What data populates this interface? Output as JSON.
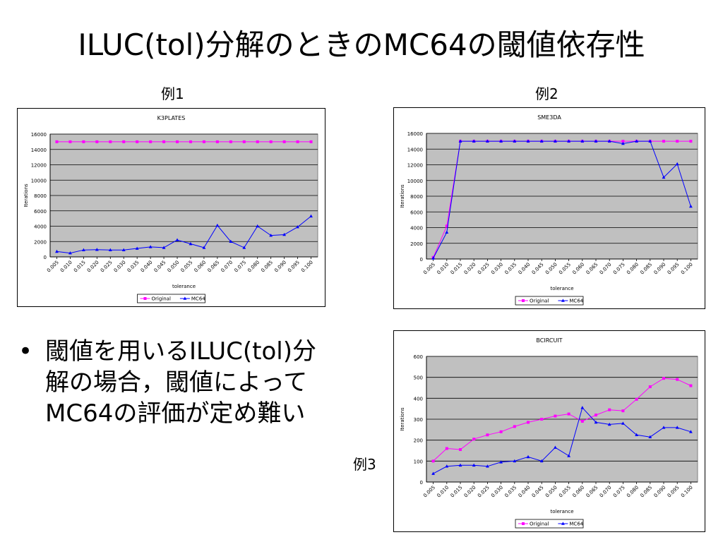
{
  "slide": {
    "title": "ILUC(tol)分解のときのMC64の閾値依存性",
    "bullet_lines": [
      "閾値を用いるILUC(tol)分",
      "解の場合，閾値によって",
      "MC64の評価が定め難い"
    ],
    "bullet_icon": "bullet-dot",
    "labels": {
      "ex1": "例1",
      "ex2": "例2",
      "ex3": "例3"
    }
  },
  "colors": {
    "original": "#ff00ff",
    "mc64": "#0000ff",
    "plot_bg": "#c0c0c0",
    "grid": "#000000"
  },
  "chart_data": [
    {
      "type": "line",
      "title": "K3PLATES",
      "xlabel": "tolerance",
      "ylabel": "Iterations",
      "ylim": [
        0,
        16000
      ],
      "yticks": [
        "0",
        "2000",
        "4000",
        "6000",
        "8000",
        "10000",
        "12000",
        "14000",
        "16000"
      ],
      "ytick_values": [
        0,
        2000,
        4000,
        6000,
        8000,
        10000,
        12000,
        14000,
        16000
      ],
      "categories": [
        "0.005",
        "0.010",
        "0.015",
        "0.020",
        "0.025",
        "0.030",
        "0.035",
        "0.040",
        "0.045",
        "0.050",
        "0.055",
        "0.060",
        "0.065",
        "0.070",
        "0.075",
        "0.080",
        "0.085",
        "0.090",
        "0.095",
        "0.100"
      ],
      "grid": true,
      "legend": "bottom",
      "series": [
        {
          "name": "Original",
          "values": [
            15000,
            15000,
            15000,
            15000,
            15000,
            15000,
            15000,
            15000,
            15000,
            15000,
            15000,
            15000,
            15000,
            15000,
            15000,
            15000,
            15000,
            15000,
            15000,
            15000
          ]
        },
        {
          "name": "MC64",
          "values": [
            700,
            500,
            900,
            950,
            900,
            900,
            1100,
            1300,
            1200,
            2200,
            1700,
            1200,
            4100,
            2000,
            1200,
            4000,
            2800,
            2900,
            3900,
            5300
          ]
        }
      ]
    },
    {
      "type": "line",
      "title": "SME3DA",
      "xlabel": "tolerance",
      "ylabel": "Iterations",
      "ylim": [
        0,
        16000
      ],
      "yticks": [
        "0",
        "2000",
        "4000",
        "6000",
        "8000",
        "10000",
        "12000",
        "14000",
        "16000"
      ],
      "ytick_values": [
        0,
        2000,
        4000,
        6000,
        8000,
        10000,
        12000,
        14000,
        16000
      ],
      "categories": [
        "0.005",
        "0.010",
        "0.015",
        "0.020",
        "0.025",
        "0.030",
        "0.035",
        "0.040",
        "0.045",
        "0.050",
        "0.055",
        "0.060",
        "0.065",
        "0.070",
        "0.075",
        "0.080",
        "0.085",
        "0.090",
        "0.095",
        "0.100"
      ],
      "grid": true,
      "legend": "bottom",
      "series": [
        {
          "name": "Original",
          "values": [
            200,
            4200,
            15000,
            15000,
            15000,
            15000,
            15000,
            15000,
            15000,
            15000,
            15000,
            15000,
            15000,
            15000,
            15000,
            15000,
            15000,
            15000,
            15000,
            15000
          ]
        },
        {
          "name": "MC64",
          "values": [
            100,
            3400,
            15000,
            15000,
            15000,
            15000,
            15000,
            15000,
            15000,
            15000,
            15000,
            15000,
            15000,
            15000,
            14700,
            15000,
            15000,
            10400,
            12100,
            6700
          ]
        }
      ]
    },
    {
      "type": "line",
      "title": "BCIRCUIT",
      "xlabel": "tolerance",
      "ylabel": "Iterations",
      "ylim": [
        0,
        600
      ],
      "yticks": [
        "0",
        "100",
        "200",
        "300",
        "400",
        "500",
        "600"
      ],
      "ytick_values": [
        0,
        100,
        200,
        300,
        400,
        500,
        600
      ],
      "categories": [
        "0.005",
        "0.010",
        "0.015",
        "0.020",
        "0.025",
        "0.030",
        "0.035",
        "0.040",
        "0.045",
        "0.050",
        "0.055",
        "0.060",
        "0.065",
        "0.070",
        "0.075",
        "0.080",
        "0.085",
        "0.090",
        "0.095",
        "0.100"
      ],
      "grid": true,
      "legend": "bottom",
      "series": [
        {
          "name": "Original",
          "values": [
            100,
            160,
            155,
            205,
            225,
            240,
            265,
            285,
            300,
            315,
            325,
            290,
            320,
            345,
            340,
            395,
            455,
            495,
            490,
            460
          ]
        },
        {
          "name": "MC64",
          "values": [
            40,
            75,
            80,
            80,
            75,
            95,
            100,
            120,
            100,
            165,
            125,
            355,
            285,
            275,
            280,
            225,
            215,
            260,
            260,
            240
          ]
        }
      ]
    }
  ]
}
